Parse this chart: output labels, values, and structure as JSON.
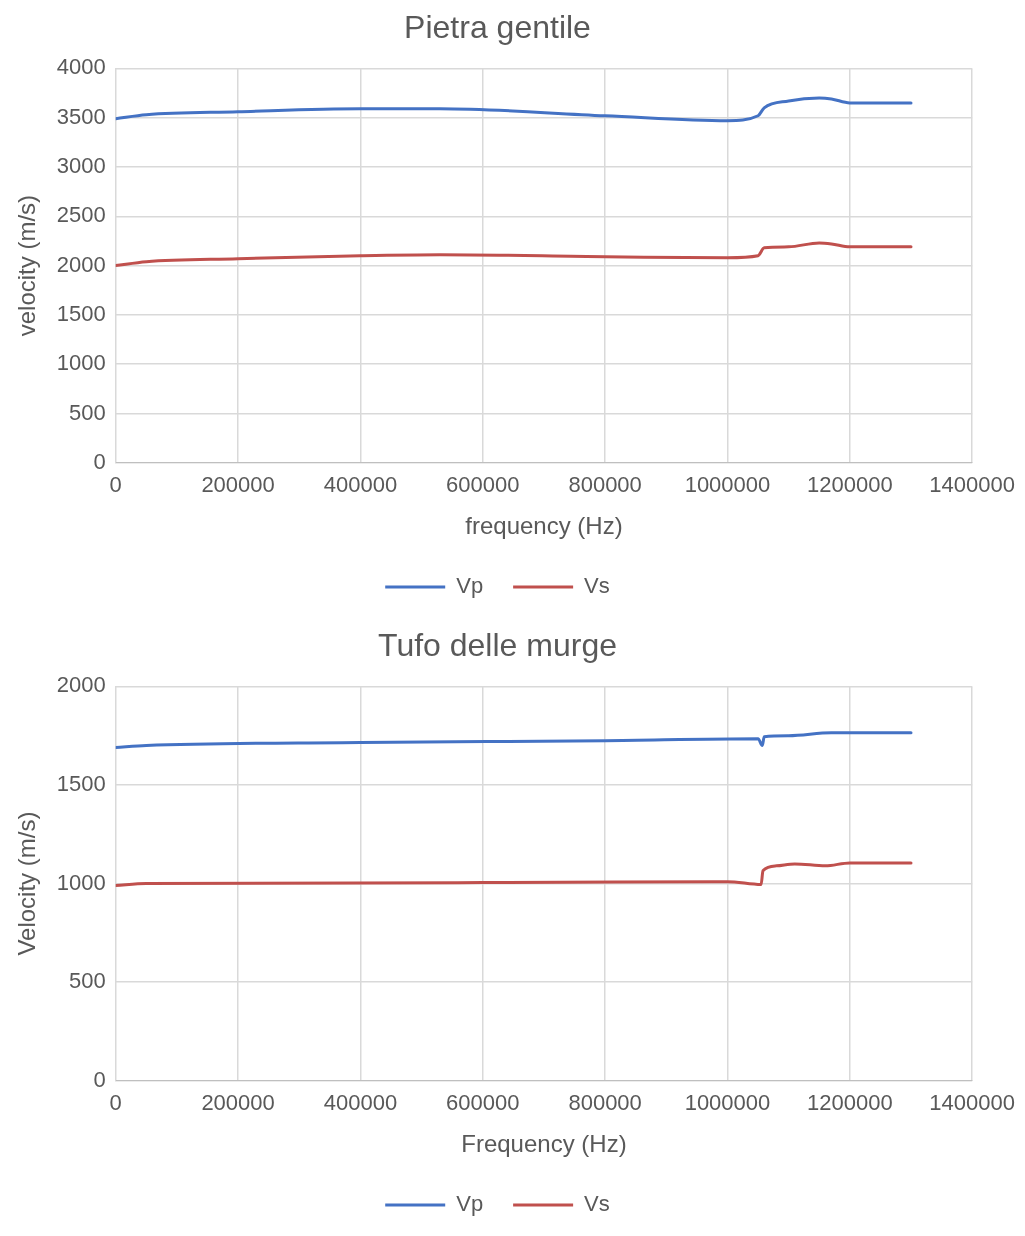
{
  "chart_data": [
    {
      "type": "line",
      "title": "Pietra gentile",
      "xlabel": "frequency (Hz)",
      "ylabel": "velocity (m/s)",
      "xlim": [
        0,
        1400000
      ],
      "xticks": [
        0,
        200000,
        400000,
        600000,
        800000,
        1000000,
        1200000,
        1400000
      ],
      "ylim": [
        0,
        4000
      ],
      "yticks": [
        0,
        500,
        1000,
        1500,
        2000,
        2500,
        3000,
        3500,
        4000
      ],
      "grid": true,
      "legend": "bottom",
      "marker": "none",
      "line_style": "solid",
      "x": [
        0,
        50000,
        200000,
        400000,
        530000,
        800000,
        1000000,
        1050000,
        1060000,
        1100000,
        1150000,
        1170000,
        1200000,
        1300000
      ],
      "series": [
        {
          "name": "Vp",
          "color": "#4472c4",
          "values": [
            3490,
            3530,
            3560,
            3590,
            3590,
            3520,
            3470,
            3520,
            3600,
            3670,
            3700,
            3690,
            3650,
            3650
          ]
        },
        {
          "name": "Vs",
          "color": "#c0504d",
          "values": [
            2000,
            2040,
            2070,
            2100,
            2110,
            2090,
            2080,
            2100,
            2180,
            2190,
            2230,
            2220,
            2190,
            2190
          ]
        }
      ]
    },
    {
      "type": "line",
      "title": "Tufo delle murge",
      "xlabel": "Frequency (Hz)",
      "ylabel": "Velocity (m/s)",
      "xlim": [
        0,
        1400000
      ],
      "xticks": [
        0,
        200000,
        400000,
        600000,
        800000,
        1000000,
        1200000,
        1400000
      ],
      "ylim": [
        0,
        2000
      ],
      "yticks": [
        0,
        500,
        1000,
        1500,
        2000
      ],
      "grid": true,
      "legend": "bottom",
      "marker": "none",
      "line_style": "solid",
      "series": [
        {
          "name": "Vp",
          "color": "#4472c4",
          "x": [
            0,
            50000,
            400000,
            800000,
            1050000,
            1057000,
            1060000,
            1100000,
            1170000,
            1300000
          ],
          "values": [
            1690,
            1700,
            1715,
            1725,
            1735,
            1700,
            1745,
            1750,
            1765,
            1765
          ]
        },
        {
          "name": "Vs",
          "color": "#c0504d",
          "x": [
            0,
            50000,
            600000,
            1000000,
            1055000,
            1058000,
            1080000,
            1110000,
            1160000,
            1200000,
            1300000
          ],
          "values": [
            990,
            1000,
            1005,
            1010,
            995,
            1065,
            1090,
            1100,
            1090,
            1105,
            1105
          ]
        }
      ]
    }
  ]
}
